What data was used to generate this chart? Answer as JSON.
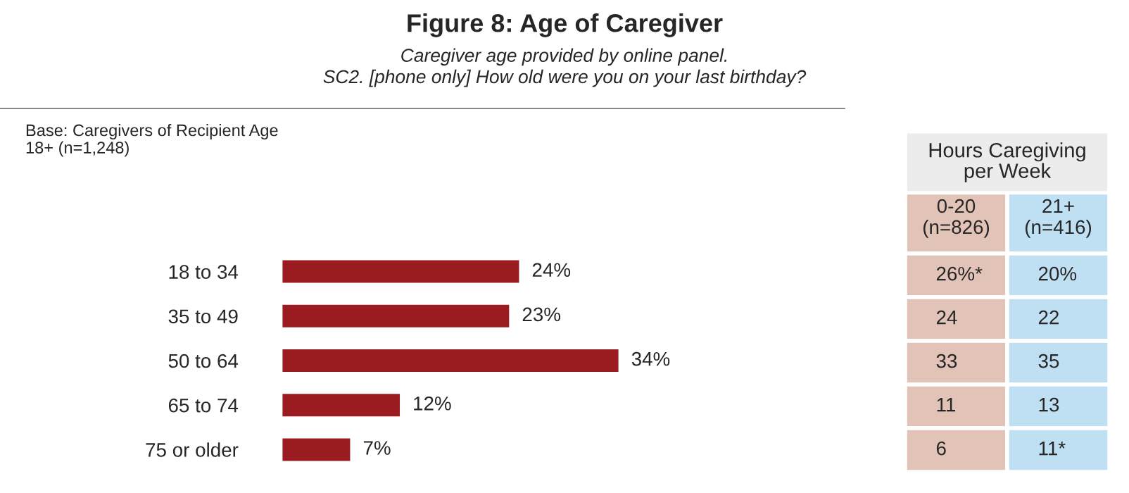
{
  "chart_data": [
    {
      "type": "bar",
      "orientation": "horizontal",
      "title": "Figure 8: Age of Caregiver",
      "subtitle": "Caregiver age provided by online panel.\nSC2. [phone only] How old were you on your last birthday?",
      "annotations": [
        "Base: Caregivers of Recipient Age\n18+ (n=1,248)"
      ],
      "categories": [
        "18 to 34",
        "35 to 49",
        "50 to 64",
        "65 to 74",
        "75 or older"
      ],
      "values": [
        24,
        23,
        34,
        12,
        7
      ],
      "color": "#9b1c20",
      "value_labels": [
        "24%",
        "23%",
        "34%",
        "12%",
        "7%"
      ]
    },
    {
      "type": "other",
      "title": "Hours Caregiving\nper Week",
      "categories": [
        "0-20\n(n=826)",
        "21+\n(n=416)"
      ],
      "colors": [
        "#e2c3b7",
        "#bfdff2"
      ],
      "cell_labels": [
        [
          "26%*",
          "20%"
        ],
        [
          "24",
          "22"
        ],
        [
          "33",
          "35"
        ],
        [
          "11",
          "13"
        ],
        [
          "6",
          "11*"
        ]
      ]
    }
  ]
}
